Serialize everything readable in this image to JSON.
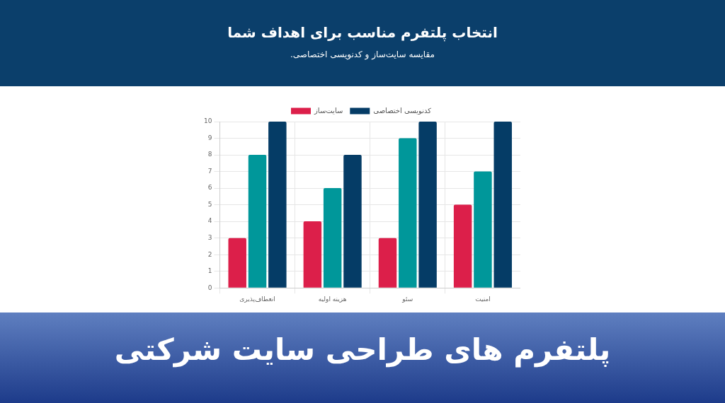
{
  "chart_data": {
    "type": "bar",
    "title": "انتخاب پلتفرم مناسب برای اهداف شما",
    "subtitle": "مقایسه سایت‌ساز و کدنویسی اختصاصی.",
    "annotations": [
      "پلتفرم های طراحی سایت شرکتی"
    ],
    "categories": [
      "انعطاف‌پذیری",
      "هزینه اولیه",
      "سئو",
      "امنیت"
    ],
    "series": [
      {
        "name": "سایت‌ساز",
        "color": "#dc1f4a",
        "values": [
          3,
          4,
          3,
          5
        ]
      },
      {
        "color": "#00979a",
        "values": [
          8,
          6,
          9,
          7
        ]
      },
      {
        "name": "کدنویسی اختصاصی",
        "color": "#053c66",
        "values": [
          10,
          8,
          10,
          10
        ]
      }
    ],
    "ylim": [
      0,
      10
    ],
    "yticks": [
      0,
      1,
      2,
      3,
      4,
      5,
      6,
      7,
      8,
      9,
      10
    ],
    "grid": true,
    "legend": "top"
  }
}
